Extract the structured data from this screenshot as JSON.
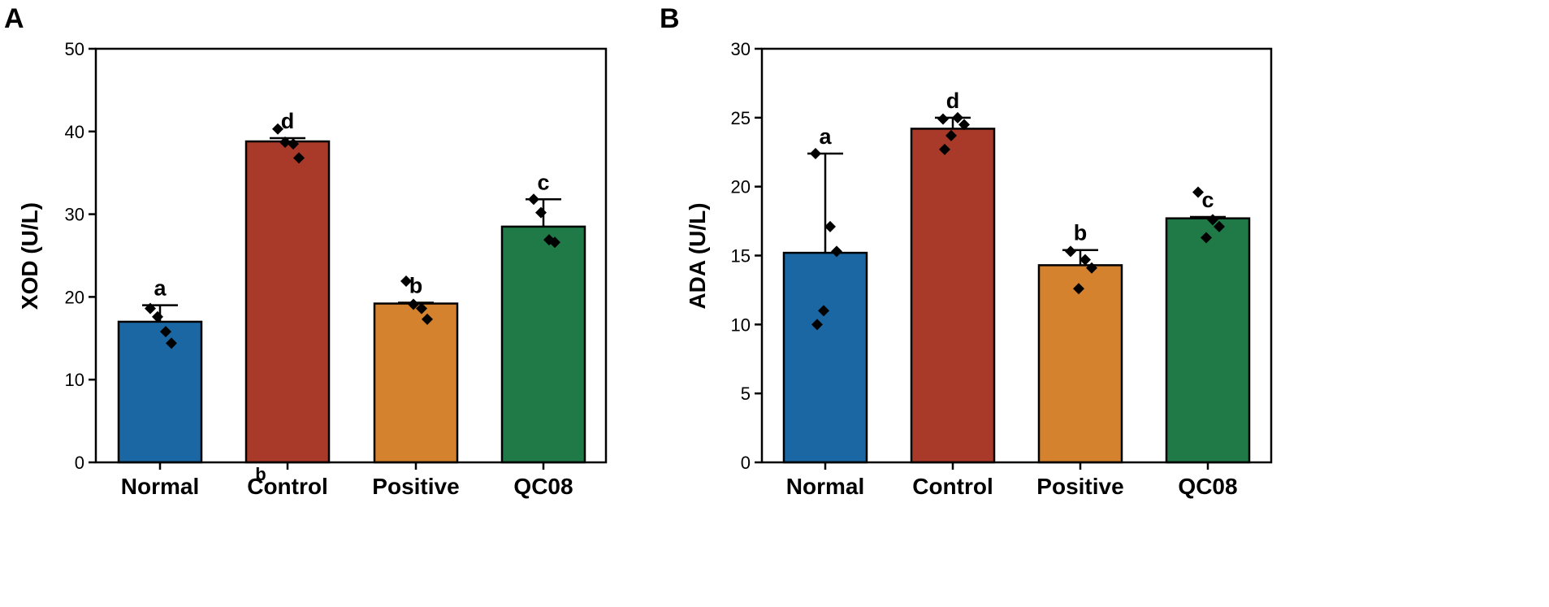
{
  "chart_data": [
    {
      "type": "bar",
      "panel_letter": "A",
      "ylabel": "XOD (U/L)",
      "xlabel": "",
      "ylim": [
        0,
        50
      ],
      "yticks": [
        0,
        10,
        20,
        30,
        40,
        50
      ],
      "grid": false,
      "categories": [
        "Normal",
        "Control",
        "Positive",
        "QC08"
      ],
      "values": [
        17.0,
        38.8,
        19.2,
        28.5
      ],
      "error_upper": [
        19.0,
        39.2,
        19.3,
        31.8
      ],
      "significance": [
        "a",
        "d",
        "b",
        "c"
      ],
      "points": [
        [
          18.6,
          17.6,
          15.8,
          14.4
        ],
        [
          40.3,
          38.7,
          38.5,
          36.8
        ],
        [
          21.9,
          19.1,
          18.6,
          17.3
        ],
        [
          31.8,
          30.2,
          26.9,
          26.6
        ]
      ],
      "colors": [
        "#1b67a3",
        "#a93a29",
        "#d5822f",
        "#207a48"
      ],
      "annotations": [
        "b"
      ]
    },
    {
      "type": "bar",
      "panel_letter": "B",
      "ylabel": "ADA (U/L)",
      "xlabel": "",
      "ylim": [
        0,
        30
      ],
      "yticks": [
        0,
        5,
        10,
        15,
        20,
        25,
        30
      ],
      "grid": false,
      "categories": [
        "Normal",
        "Control",
        "Positive",
        "QC08"
      ],
      "values": [
        15.2,
        24.2,
        14.3,
        17.7
      ],
      "error_upper": [
        22.4,
        25.0,
        15.4,
        17.8
      ],
      "significance": [
        "a",
        "d",
        "b",
        "c"
      ],
      "points": [
        [
          22.4,
          17.1,
          15.3,
          11.0,
          10.0
        ],
        [
          24.9,
          25.0,
          24.5,
          23.7,
          22.7
        ],
        [
          15.3,
          14.7,
          14.1,
          12.6
        ],
        [
          19.6,
          17.6,
          17.1,
          16.3
        ]
      ],
      "colors": [
        "#1b67a3",
        "#a93a29",
        "#d5822f",
        "#207a48"
      ],
      "annotations": []
    }
  ]
}
